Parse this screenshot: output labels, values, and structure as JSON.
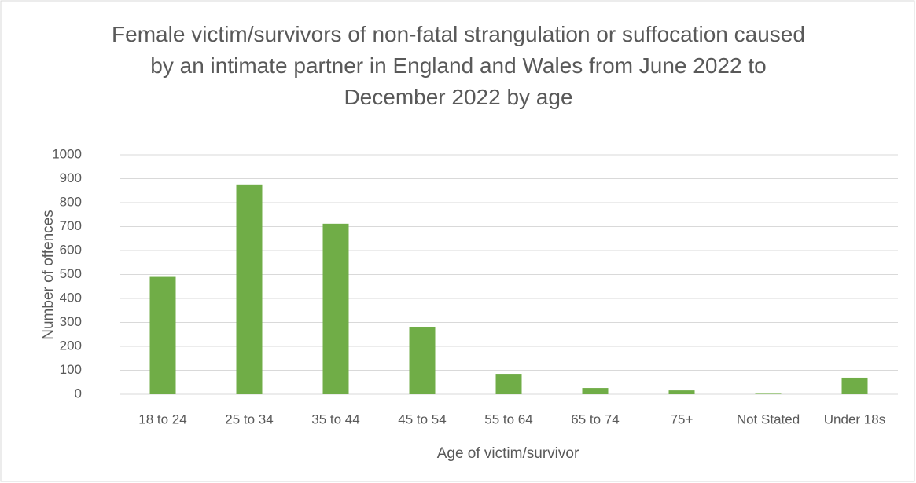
{
  "chart_data": {
    "type": "bar",
    "title": "Female victim/survivors of non-fatal strangulation or suffocation caused by an intimate partner in England and Wales from June 2022 to December 2022 by age",
    "x_label": "Age of victim/survivor",
    "y_label": "Number of offences",
    "categories": [
      "18 to 24",
      "25 to 34",
      "35 to 44",
      "45 to 54",
      "55 to 64",
      "65 to 74",
      "75+",
      "Not Stated",
      "Under 18s"
    ],
    "values": [
      490,
      876,
      712,
      282,
      85,
      26,
      16,
      2,
      69
    ],
    "color": "#70ad47",
    "ylim": [
      0,
      1000
    ],
    "yticks": [
      0,
      100,
      200,
      300,
      400,
      500,
      600,
      700,
      800,
      900,
      1000
    ],
    "grid": true
  }
}
